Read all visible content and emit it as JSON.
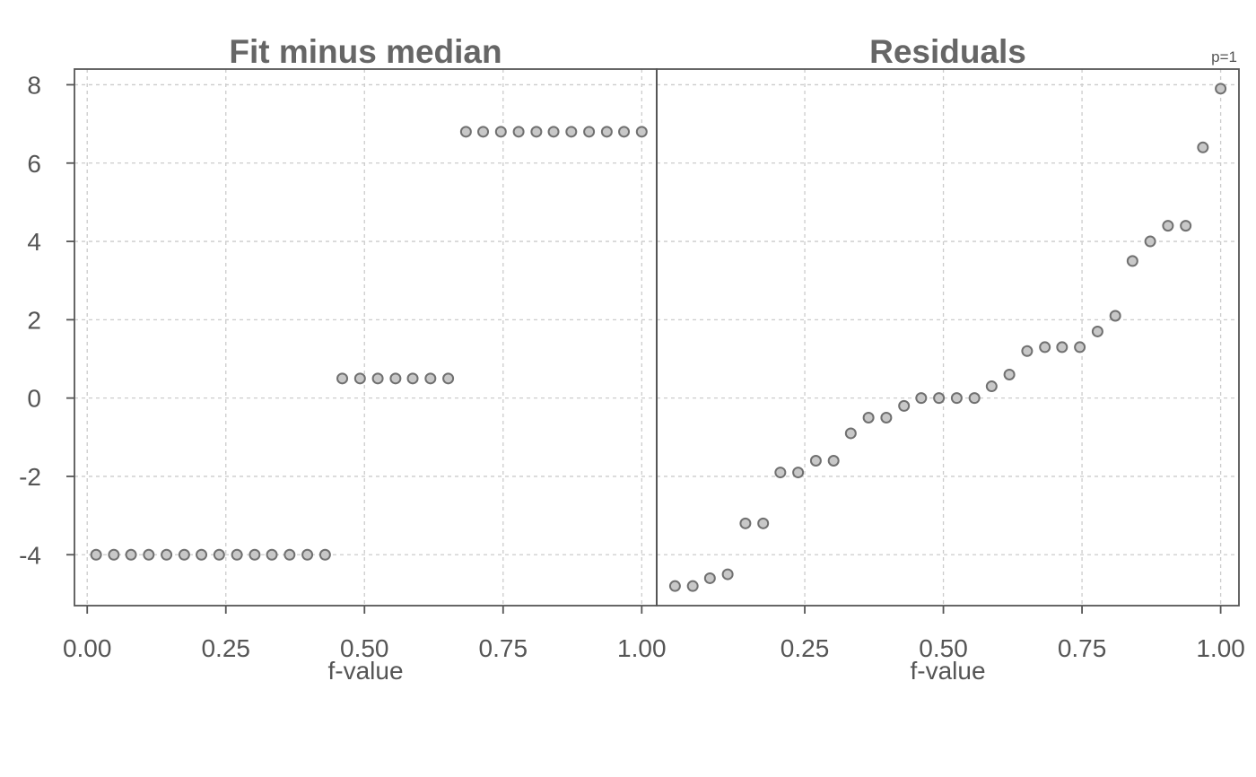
{
  "chart_data": {
    "type": "scatter",
    "subtype": "residual-fit spread plot",
    "corner_label": "p=1",
    "grid": true,
    "y_ticks": [
      "8",
      "6",
      "4",
      "2",
      "0",
      "-2",
      "-4"
    ],
    "y_tick_values": [
      8,
      6,
      4,
      2,
      0,
      -2,
      -4
    ],
    "ylim": [
      -5.3,
      8.4
    ],
    "panels": [
      {
        "title": "Fit minus median",
        "xlabel": "f-value",
        "x_ticks": [
          "0.00",
          "0.25",
          "0.50",
          "0.75",
          "1.00"
        ],
        "x_tick_values": [
          0,
          0.25,
          0.5,
          0.75,
          1
        ],
        "xlim": [
          -0.023,
          1.027
        ],
        "points": [
          [
            0.016,
            -4
          ],
          [
            0.048,
            -4
          ],
          [
            0.079,
            -4
          ],
          [
            0.111,
            -4
          ],
          [
            0.143,
            -4
          ],
          [
            0.175,
            -4
          ],
          [
            0.206,
            -4
          ],
          [
            0.238,
            -4
          ],
          [
            0.27,
            -4
          ],
          [
            0.302,
            -4
          ],
          [
            0.333,
            -4
          ],
          [
            0.365,
            -4
          ],
          [
            0.397,
            -4
          ],
          [
            0.429,
            -4
          ],
          [
            0.46,
            0.5
          ],
          [
            0.492,
            0.5
          ],
          [
            0.524,
            0.5
          ],
          [
            0.556,
            0.5
          ],
          [
            0.587,
            0.5
          ],
          [
            0.619,
            0.5
          ],
          [
            0.651,
            0.5
          ],
          [
            0.683,
            6.8
          ],
          [
            0.714,
            6.8
          ],
          [
            0.746,
            6.8
          ],
          [
            0.778,
            6.8
          ],
          [
            0.81,
            6.8
          ],
          [
            0.841,
            6.8
          ],
          [
            0.873,
            6.8
          ],
          [
            0.905,
            6.8
          ],
          [
            0.937,
            6.8
          ],
          [
            0.968,
            6.8
          ],
          [
            1.0,
            6.8
          ]
        ]
      },
      {
        "title": "Residuals",
        "xlabel": "f-value",
        "x_ticks": [
          "0.25",
          "0.50",
          "0.75",
          "1.00"
        ],
        "x_tick_values": [
          0.25,
          0.5,
          0.75,
          1
        ],
        "xlim": [
          -0.017,
          1.033
        ],
        "points": [
          [
            0.016,
            -4.8
          ],
          [
            0.048,
            -4.8
          ],
          [
            0.079,
            -4.6
          ],
          [
            0.111,
            -4.5
          ],
          [
            0.143,
            -3.2
          ],
          [
            0.175,
            -3.2
          ],
          [
            0.206,
            -1.9
          ],
          [
            0.238,
            -1.9
          ],
          [
            0.27,
            -1.6
          ],
          [
            0.302,
            -1.6
          ],
          [
            0.333,
            -0.9
          ],
          [
            0.365,
            -0.5
          ],
          [
            0.397,
            -0.5
          ],
          [
            0.429,
            -0.2
          ],
          [
            0.46,
            0.0
          ],
          [
            0.492,
            0.0
          ],
          [
            0.524,
            0.0
          ],
          [
            0.556,
            0.0
          ],
          [
            0.587,
            0.3
          ],
          [
            0.619,
            0.6
          ],
          [
            0.651,
            1.2
          ],
          [
            0.683,
            1.3
          ],
          [
            0.714,
            1.3
          ],
          [
            0.746,
            1.3
          ],
          [
            0.778,
            1.7
          ],
          [
            0.81,
            2.1
          ],
          [
            0.841,
            3.5
          ],
          [
            0.873,
            4.0
          ],
          [
            0.905,
            4.4
          ],
          [
            0.937,
            4.4
          ],
          [
            0.968,
            6.4
          ],
          [
            1.0,
            7.9
          ]
        ]
      }
    ]
  }
}
